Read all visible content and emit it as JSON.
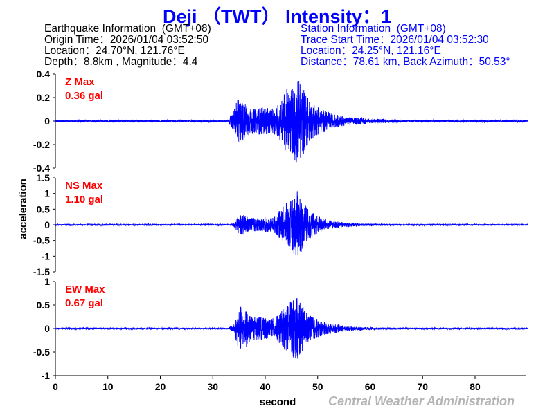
{
  "header": {
    "title": "Deji （TWT） Intensity：1"
  },
  "earthquake": {
    "heading": "Earthquake Information  (GMT+08)",
    "origin_time": "Origin Time：2026/01/04 03:52:50",
    "location": "Location：24.70°N, 121.76°E",
    "depth_mag": "Depth：8.8km , Magnitude：4.4"
  },
  "station": {
    "heading": "Station Information  (GMT+08)",
    "trace_start": "Trace Start Time：2026/01/04 03:52:30",
    "location": "Location：24.25°N, 121.16°E",
    "distance": "Distance：78.61 km, Back Azimuth：50.53°"
  },
  "credit": "Central Weather Administration",
  "chart_data": {
    "type": "line",
    "xlabel": "second",
    "ylabel": "acceleration",
    "xlim": [
      0,
      90
    ],
    "xticks": [
      0,
      10,
      20,
      30,
      40,
      50,
      60,
      70,
      80
    ],
    "panels": [
      {
        "name": "Z",
        "label": "Z Max",
        "max_label": "0.36 gal",
        "ylim": [
          -0.4,
          0.4
        ],
        "yticks": [
          "0.4",
          "0.2",
          "0",
          "-0.2",
          "-0.4"
        ],
        "ytick_values": [
          0.4,
          0.2,
          0,
          -0.2,
          -0.4
        ],
        "color": "#0000ff",
        "envelope_per_second": [
          0.01,
          0.01,
          0.01,
          0.01,
          0.01,
          0.01,
          0.01,
          0.01,
          0.01,
          0.01,
          0.01,
          0.01,
          0.01,
          0.01,
          0.01,
          0.01,
          0.01,
          0.01,
          0.01,
          0.01,
          0.01,
          0.01,
          0.01,
          0.01,
          0.01,
          0.01,
          0.01,
          0.01,
          0.01,
          0.01,
          0.01,
          0.01,
          0.01,
          0.01,
          0.1,
          0.21,
          0.16,
          0.12,
          0.1,
          0.12,
          0.12,
          0.1,
          0.12,
          0.2,
          0.27,
          0.3,
          0.36,
          0.32,
          0.22,
          0.15,
          0.12,
          0.1,
          0.08,
          0.06,
          0.05,
          0.04,
          0.035,
          0.03,
          0.03,
          0.025,
          0.02,
          0.02,
          0.02,
          0.015,
          0.015,
          0.015,
          0.012,
          0.012,
          0.01,
          0.01,
          0.01,
          0.01,
          0.01,
          0.01,
          0.01,
          0.01,
          0.01,
          0.01,
          0.01,
          0.01,
          0.01,
          0.01,
          0.01,
          0.01,
          0.01,
          0.01,
          0.01,
          0.01,
          0.01,
          0.01
        ]
      },
      {
        "name": "NS",
        "label": "NS Max",
        "max_label": "1.10 gal",
        "ylim": [
          -1.5,
          1.5
        ],
        "yticks": [
          "1.5",
          "1",
          "0.5",
          "0",
          "-0.5",
          "-1",
          "-1.5"
        ],
        "ytick_values": [
          1.5,
          1,
          0.5,
          0,
          -0.5,
          -1,
          -1.5
        ],
        "color": "#0000ff",
        "envelope_per_second": [
          0.02,
          0.02,
          0.02,
          0.02,
          0.02,
          0.02,
          0.02,
          0.02,
          0.02,
          0.02,
          0.02,
          0.02,
          0.02,
          0.02,
          0.02,
          0.02,
          0.02,
          0.02,
          0.02,
          0.02,
          0.02,
          0.02,
          0.02,
          0.02,
          0.02,
          0.02,
          0.02,
          0.02,
          0.02,
          0.02,
          0.02,
          0.02,
          0.02,
          0.02,
          0.05,
          0.3,
          0.32,
          0.25,
          0.22,
          0.2,
          0.25,
          0.22,
          0.3,
          0.5,
          0.7,
          0.8,
          1.1,
          0.85,
          0.55,
          0.4,
          0.3,
          0.22,
          0.15,
          0.12,
          0.1,
          0.08,
          0.06,
          0.05,
          0.05,
          0.04,
          0.04,
          0.03,
          0.03,
          0.03,
          0.03,
          0.02,
          0.02,
          0.02,
          0.02,
          0.02,
          0.02,
          0.02,
          0.02,
          0.02,
          0.02,
          0.02,
          0.02,
          0.02,
          0.02,
          0.02,
          0.02,
          0.02,
          0.02,
          0.02,
          0.02,
          0.02,
          0.02,
          0.02,
          0.02,
          0.02
        ]
      },
      {
        "name": "EW",
        "label": "EW Max",
        "max_label": "0.67 gal",
        "ylim": [
          -1,
          1
        ],
        "yticks": [
          "1",
          "0.5",
          "0",
          "-0.5",
          "-1"
        ],
        "ytick_values": [
          1,
          0.5,
          0,
          -0.5,
          -1
        ],
        "color": "#0000ff",
        "envelope_per_second": [
          0.015,
          0.015,
          0.015,
          0.015,
          0.015,
          0.015,
          0.015,
          0.015,
          0.015,
          0.015,
          0.015,
          0.015,
          0.015,
          0.015,
          0.015,
          0.015,
          0.015,
          0.015,
          0.015,
          0.015,
          0.015,
          0.015,
          0.015,
          0.015,
          0.015,
          0.015,
          0.015,
          0.015,
          0.015,
          0.015,
          0.015,
          0.015,
          0.015,
          0.015,
          0.1,
          0.5,
          0.45,
          0.3,
          0.25,
          0.25,
          0.22,
          0.2,
          0.25,
          0.35,
          0.5,
          0.6,
          0.67,
          0.5,
          0.35,
          0.25,
          0.2,
          0.15,
          0.12,
          0.1,
          0.08,
          0.06,
          0.05,
          0.04,
          0.04,
          0.03,
          0.03,
          0.025,
          0.02,
          0.02,
          0.02,
          0.02,
          0.015,
          0.015,
          0.015,
          0.015,
          0.015,
          0.015,
          0.015,
          0.015,
          0.015,
          0.015,
          0.015,
          0.015,
          0.015,
          0.015,
          0.015,
          0.015,
          0.015,
          0.015,
          0.015,
          0.015,
          0.015,
          0.015,
          0.015,
          0.015
        ]
      }
    ]
  }
}
